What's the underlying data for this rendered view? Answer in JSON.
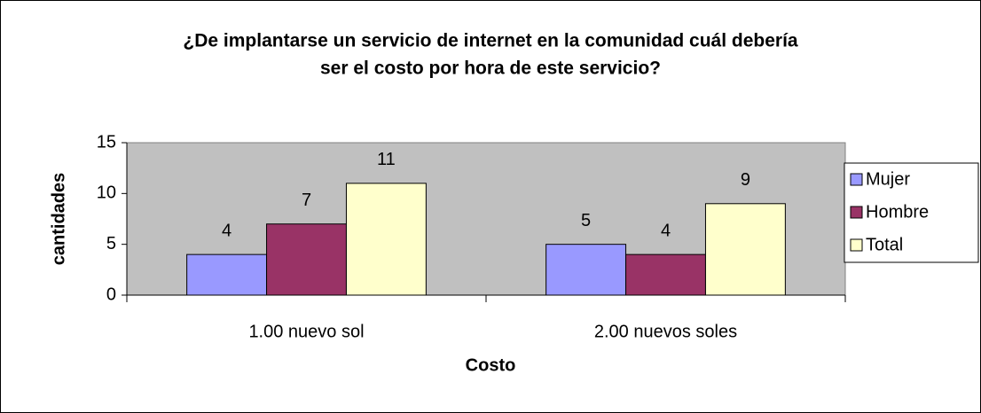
{
  "chart_data": {
    "type": "bar",
    "title": [
      "¿De implantarse un servicio de internet en la comunidad cuál debería",
      "ser el costo por hora de este servicio?"
    ],
    "x_label": "Costo",
    "y_label": "cantidades",
    "categories": [
      "1.00 nuevo sol",
      "2.00 nuevos soles"
    ],
    "series": [
      {
        "name": "Mujer",
        "color": "#9999ff",
        "values": [
          4,
          5
        ]
      },
      {
        "name": "Hombre",
        "color": "#993366",
        "values": [
          7,
          4
        ]
      },
      {
        "name": "Total",
        "color": "#ffffcc",
        "values": [
          11,
          9
        ]
      }
    ],
    "ylim": [
      0,
      15
    ],
    "yticks": [
      0,
      5,
      10,
      15
    ],
    "grid": false,
    "legend": "right"
  }
}
